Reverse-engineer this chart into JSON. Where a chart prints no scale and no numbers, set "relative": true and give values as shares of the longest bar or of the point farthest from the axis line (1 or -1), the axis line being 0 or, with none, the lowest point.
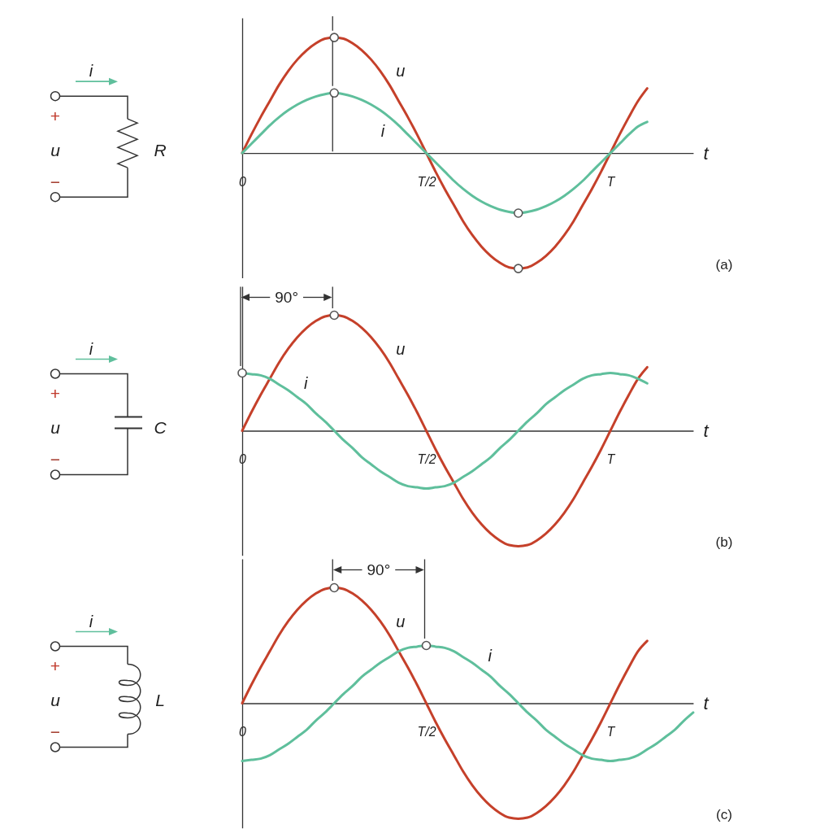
{
  "chart_data": [
    {
      "type": "line",
      "xlabel": "t",
      "relative": true,
      "categories": [
        "0",
        null,
        null,
        null,
        null,
        null,
        null,
        null,
        null,
        null,
        null,
        null,
        null,
        null,
        null,
        null,
        null,
        null,
        null,
        null,
        "T/2",
        null,
        null,
        null,
        null,
        null,
        null,
        null,
        null,
        null,
        null,
        null,
        null,
        null,
        null,
        null,
        null,
        null,
        null,
        null,
        "T",
        null,
        null,
        null,
        null,
        null,
        null,
        null,
        null,
        null
      ],
      "series": [
        {
          "name": "u",
          "color": "#c5402a",
          "values": [
            0,
            0.16,
            0.31,
            0.45,
            0.59,
            0.71,
            0.81,
            0.89,
            0.95,
            0.99,
            1,
            0.99,
            0.95,
            0.89,
            0.81,
            0.71,
            0.59,
            0.45,
            0.31,
            0.16,
            0,
            -0.16,
            -0.31,
            -0.45,
            -0.59,
            -0.71,
            -0.81,
            -0.89,
            -0.95,
            -0.99,
            -1,
            -0.99,
            -0.95,
            -0.89,
            -0.81,
            -0.71,
            -0.59,
            -0.45,
            -0.31,
            -0.16,
            0,
            0.16,
            0.31,
            0.45,
            0.56,
            null,
            null,
            null,
            null,
            null
          ]
        },
        {
          "name": "i",
          "color": "#5fbf9c",
          "values": [
            0,
            0.08,
            0.16,
            0.24,
            0.31,
            0.37,
            0.42,
            0.46,
            0.49,
            0.51,
            0.52,
            0.51,
            0.49,
            0.46,
            0.42,
            0.37,
            0.31,
            0.24,
            0.16,
            0.08,
            0,
            -0.08,
            -0.16,
            -0.24,
            -0.31,
            -0.37,
            -0.42,
            -0.46,
            -0.49,
            -0.51,
            -0.52,
            -0.51,
            -0.49,
            -0.46,
            -0.42,
            -0.37,
            -0.31,
            -0.24,
            -0.16,
            -0.08,
            0,
            0.08,
            0.16,
            0.23,
            0.27,
            null,
            null,
            null,
            null,
            null
          ]
        },
        {
          "type": "scatter",
          "marker": "circle",
          "color": "#ffffff",
          "values": [
            null,
            null,
            null,
            null,
            null,
            null,
            null,
            null,
            null,
            null,
            1,
            null,
            null,
            null,
            null,
            null,
            null,
            null,
            null,
            null,
            null,
            null,
            null,
            null,
            null,
            null,
            null,
            null,
            null,
            null,
            -1,
            null,
            null,
            null,
            null,
            null,
            null,
            null,
            null,
            null,
            null,
            null,
            null,
            null,
            null,
            null,
            null,
            null,
            null,
            null
          ]
        },
        {
          "type": "scatter",
          "marker": "circle",
          "color": "#ffffff",
          "values": [
            null,
            null,
            null,
            null,
            null,
            null,
            null,
            null,
            null,
            null,
            0.52,
            null,
            null,
            null,
            null,
            null,
            null,
            null,
            null,
            null,
            null,
            null,
            null,
            null,
            null,
            null,
            null,
            null,
            null,
            null,
            -0.52,
            null,
            null,
            null,
            null,
            null,
            null,
            null,
            null,
            null,
            null,
            null,
            null,
            null,
            null,
            null,
            null,
            null,
            null,
            null
          ]
        }
      ],
      "annotations": [
        "i",
        "+",
        "u",
        "−",
        "R",
        "(a)"
      ]
    },
    {
      "type": "line",
      "xlabel": "t",
      "relative": true,
      "categories": [
        "0",
        null,
        null,
        null,
        null,
        null,
        null,
        null,
        null,
        null,
        null,
        null,
        null,
        null,
        null,
        null,
        null,
        null,
        null,
        null,
        "T/2",
        null,
        null,
        null,
        null,
        null,
        null,
        null,
        null,
        null,
        null,
        null,
        null,
        null,
        null,
        null,
        null,
        null,
        null,
        null,
        "T",
        null,
        null,
        null,
        null,
        null,
        null,
        null,
        null,
        null
      ],
      "series": [
        {
          "name": "u",
          "color": "#c5402a",
          "values": [
            0,
            0.16,
            0.31,
            0.45,
            0.59,
            0.71,
            0.81,
            0.89,
            0.95,
            0.99,
            1,
            0.99,
            0.95,
            0.89,
            0.81,
            0.71,
            0.59,
            0.45,
            0.31,
            0.16,
            0,
            -0.16,
            -0.31,
            -0.45,
            -0.59,
            -0.71,
            -0.81,
            -0.89,
            -0.95,
            -0.99,
            -1,
            -0.99,
            -0.95,
            -0.89,
            -0.81,
            -0.71,
            -0.59,
            -0.45,
            -0.31,
            -0.16,
            0,
            0.16,
            0.31,
            0.45,
            0.55,
            null,
            null,
            null,
            null,
            null
          ]
        },
        {
          "name": "i",
          "color": "#5fbf9c",
          "values": [
            0.5,
            0.49,
            0.48,
            0.45,
            0.4,
            0.35,
            0.29,
            0.23,
            0.15,
            0.08,
            0,
            -0.08,
            -0.15,
            -0.23,
            -0.29,
            -0.35,
            -0.4,
            -0.45,
            -0.48,
            -0.49,
            -0.5,
            -0.49,
            -0.48,
            -0.45,
            -0.4,
            -0.35,
            -0.29,
            -0.23,
            -0.15,
            -0.08,
            0,
            0.08,
            0.15,
            0.23,
            0.29,
            0.35,
            0.4,
            0.45,
            0.48,
            0.49,
            0.5,
            0.49,
            0.48,
            0.45,
            0.41,
            null,
            null,
            null,
            null,
            null
          ]
        },
        {
          "type": "scatter",
          "marker": "circle",
          "color": "#ffffff",
          "values": [
            0.5,
            null,
            null,
            null,
            null,
            null,
            null,
            null,
            null,
            null,
            1,
            null,
            null,
            null,
            null,
            null,
            null,
            null,
            null,
            null,
            null,
            null,
            null,
            null,
            null,
            null,
            null,
            null,
            null,
            null,
            null,
            null,
            null,
            null,
            null,
            null,
            null,
            null,
            null,
            null,
            null,
            null,
            null,
            null,
            null,
            null,
            null,
            null,
            null,
            null
          ]
        }
      ],
      "annotations": [
        "i",
        "+",
        "u",
        "−",
        "C",
        "(b)",
        "90°"
      ]
    },
    {
      "type": "line",
      "xlabel": "t",
      "relative": true,
      "categories": [
        "0",
        null,
        null,
        null,
        null,
        null,
        null,
        null,
        null,
        null,
        null,
        null,
        null,
        null,
        null,
        null,
        null,
        null,
        null,
        null,
        "T/2",
        null,
        null,
        null,
        null,
        null,
        null,
        null,
        null,
        null,
        null,
        null,
        null,
        null,
        null,
        null,
        null,
        null,
        null,
        null,
        "T",
        null,
        null,
        null,
        null,
        null,
        null,
        null,
        null,
        null
      ],
      "series": [
        {
          "name": "u",
          "color": "#c5402a",
          "values": [
            0,
            0.16,
            0.31,
            0.45,
            0.59,
            0.71,
            0.81,
            0.89,
            0.95,
            0.99,
            1,
            0.99,
            0.95,
            0.89,
            0.81,
            0.71,
            0.59,
            0.45,
            0.31,
            0.16,
            0,
            -0.16,
            -0.31,
            -0.45,
            -0.59,
            -0.71,
            -0.81,
            -0.89,
            -0.95,
            -0.99,
            -1,
            -0.99,
            -0.95,
            -0.89,
            -0.81,
            -0.71,
            -0.59,
            -0.45,
            -0.31,
            -0.16,
            0,
            0.16,
            0.31,
            0.45,
            0.54,
            null,
            null,
            null,
            null,
            null
          ]
        },
        {
          "name": "i",
          "color": "#5fbf9c",
          "values": [
            -0.5,
            -0.49,
            -0.48,
            -0.45,
            -0.4,
            -0.35,
            -0.29,
            -0.23,
            -0.15,
            -0.08,
            0,
            0.08,
            0.15,
            0.23,
            0.29,
            0.35,
            0.4,
            0.45,
            0.48,
            0.49,
            0.5,
            0.49,
            0.48,
            0.45,
            0.4,
            0.35,
            0.29,
            0.23,
            0.15,
            0.08,
            0,
            -0.08,
            -0.15,
            -0.23,
            -0.29,
            -0.35,
            -0.4,
            -0.45,
            -0.48,
            -0.49,
            -0.5,
            -0.49,
            -0.48,
            -0.45,
            -0.4,
            -0.35,
            -0.29,
            -0.23,
            -0.15,
            -0.08
          ]
        },
        {
          "type": "scatter",
          "marker": "circle",
          "color": "#ffffff",
          "values": [
            null,
            null,
            null,
            null,
            null,
            null,
            null,
            null,
            null,
            null,
            1,
            null,
            null,
            null,
            null,
            null,
            null,
            null,
            null,
            null,
            0.5,
            null,
            null,
            null,
            null,
            null,
            null,
            null,
            null,
            null,
            null,
            null,
            null,
            null,
            null,
            null,
            null,
            null,
            null,
            null,
            null,
            null,
            null,
            null,
            null,
            null,
            null,
            null,
            null,
            null
          ]
        }
      ],
      "annotations": [
        "i",
        "+",
        "u",
        "−",
        "L",
        "(c)",
        "90°"
      ]
    }
  ]
}
